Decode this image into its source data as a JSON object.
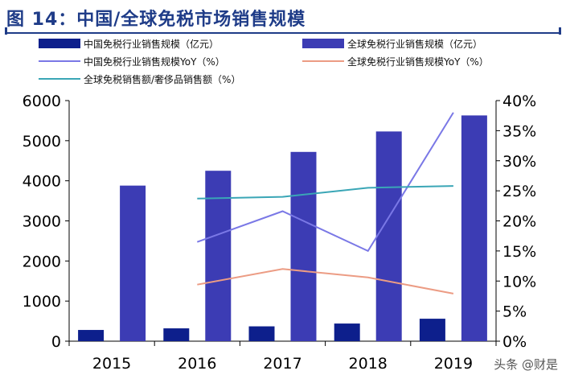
{
  "title": "图 14：中国/全球免税市场销售规模",
  "watermark": "头条 @财是",
  "colors": {
    "title": "#1f3c88",
    "china_sales_bar": "#0d1f8c",
    "global_sales_bar": "#3c3cb4",
    "china_yoy_line": "#7a78e6",
    "global_yoy_line": "#ec9c84",
    "global_ratio_line": "#3aa6b6",
    "axis": "#000000"
  },
  "chart_data": {
    "type": "bar",
    "categories": [
      "2015",
      "2016",
      "2017",
      "2018",
      "2019"
    ],
    "ylim": [
      0,
      6000
    ],
    "y_ticks": [
      0,
      1000,
      2000,
      3000,
      4000,
      5000,
      6000
    ],
    "y2lim": [
      0,
      40
    ],
    "y2_ticks": [
      "0%",
      "5%",
      "10%",
      "15%",
      "20%",
      "25%",
      "30%",
      "35%",
      "40%"
    ],
    "grid": false,
    "legend_position": "top",
    "series": [
      {
        "name": "中国免税行业销售规模（亿元）",
        "kind": "bar",
        "axis": "left",
        "values": [
          280,
          320,
          370,
          440,
          560
        ]
      },
      {
        "name": "全球免税行业销售规模（亿元）",
        "kind": "bar",
        "axis": "left",
        "values": [
          3880,
          4250,
          4720,
          5230,
          5630
        ]
      },
      {
        "name": "中国免税行业销售规模YoY（%）",
        "kind": "line",
        "axis": "right",
        "values": [
          null,
          16.5,
          21.6,
          15.0,
          38.0
        ]
      },
      {
        "name": "全球免税行业销售规模YoY（%）",
        "kind": "line",
        "axis": "right",
        "values": [
          null,
          9.4,
          12.0,
          10.6,
          7.9
        ]
      },
      {
        "name": "全球免税销售额/奢侈品销售额（%）",
        "kind": "line",
        "axis": "right",
        "values": [
          null,
          23.7,
          24.0,
          25.5,
          25.8
        ]
      }
    ]
  }
}
